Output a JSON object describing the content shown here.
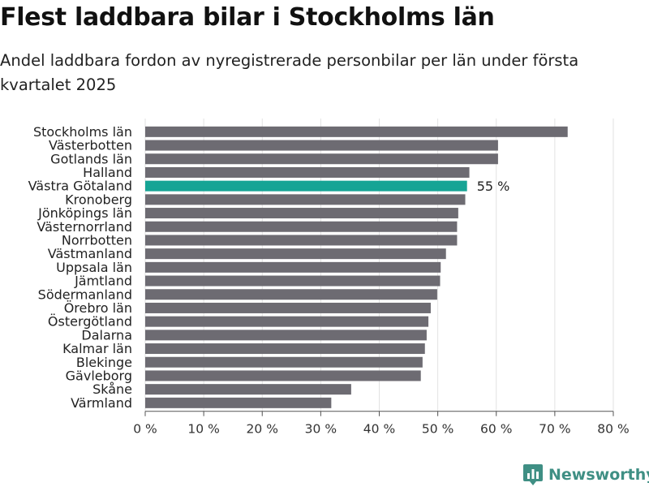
{
  "title": "Flest laddbara bilar i Stockholms län",
  "subtitle": "Andel laddbara fordon av nyregistrerade personbilar per län under första kvartalet 2025",
  "brand": {
    "name": "Newsworthy",
    "color": "#3f8f84"
  },
  "colors": {
    "bar": "#6d6b72",
    "highlight": "#16a495",
    "grid": "#e2e2e2"
  },
  "chart_data": {
    "type": "bar",
    "orientation": "horizontal",
    "categories": [
      "Stockholms län",
      "Västerbotten",
      "Gotlands län",
      "Halland",
      "Västra Götaland",
      "Kronoberg",
      "Jönköpings län",
      "Västernorrland",
      "Norrbotten",
      "Västmanland",
      "Uppsala län",
      "Jämtland",
      "Södermanland",
      "Örebro län",
      "Östergötland",
      "Dalarna",
      "Kalmar län",
      "Blekinge",
      "Gävleborg",
      "Skåne",
      "Värmland"
    ],
    "values": [
      72.2,
      60.3,
      60.3,
      55.4,
      55.0,
      54.7,
      53.5,
      53.3,
      53.3,
      51.4,
      50.5,
      50.4,
      49.9,
      48.8,
      48.4,
      48.1,
      47.8,
      47.4,
      47.1,
      35.2,
      31.8
    ],
    "highlight": {
      "category": "Västra Götaland",
      "label": "55 %"
    },
    "xlim": [
      0,
      80
    ],
    "xticks": [
      0,
      10,
      20,
      30,
      40,
      50,
      60,
      70,
      80
    ],
    "xtick_labels": [
      "0 %",
      "10 %",
      "20 %",
      "30 %",
      "40 %",
      "50 %",
      "60 %",
      "70 %",
      "80 %"
    ],
    "xlabel": "",
    "ylabel": "",
    "grid": true
  }
}
